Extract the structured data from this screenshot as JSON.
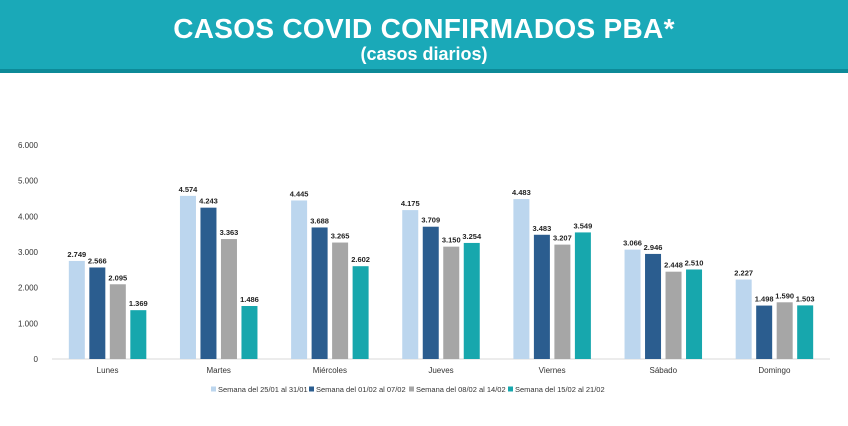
{
  "header": {
    "title": "CASOS COVID CONFIRMADOS PBA*",
    "subtitle": "(casos diarios)"
  },
  "chart_data": {
    "type": "bar",
    "title": "CASOS COVID CONFIRMADOS PBA*",
    "subtitle": "(casos diarios)",
    "xlabel": "",
    "ylabel": "",
    "ylim": [
      0,
      6000
    ],
    "yticks": [
      0,
      1000,
      2000,
      3000,
      4000,
      5000,
      6000
    ],
    "ytick_labels": [
      "0",
      "1.000",
      "2.000",
      "3.000",
      "4.000",
      "5.000",
      "6.000"
    ],
    "grid": false,
    "legend_position": "bottom",
    "categories": [
      "Lunes",
      "Martes",
      "Miércoles",
      "Jueves",
      "Viernes",
      "Sábado",
      "Domingo"
    ],
    "series": [
      {
        "name": "Semana del 25/01 al 31/01",
        "color": "#bcd6ee",
        "values": [
          2749,
          4574,
          4445,
          4175,
          4483,
          3066,
          2227
        ],
        "labels": [
          "2.749",
          "4.574",
          "4.445",
          "4.175",
          "4.483",
          "3.066",
          "2.227"
        ]
      },
      {
        "name": "Semana del 01/02 al 07/02",
        "color": "#2b5d8f",
        "values": [
          2566,
          4243,
          3688,
          3709,
          3483,
          2946,
          1498
        ],
        "labels": [
          "2.566",
          "4.243",
          "3.688",
          "3.709",
          "3.483",
          "2.946",
          "1.498"
        ]
      },
      {
        "name": "Semana del 08/02 al 14/02",
        "color": "#a6a6a6",
        "values": [
          2095,
          3363,
          3265,
          3150,
          3207,
          2448,
          1590
        ],
        "labels": [
          "2.095",
          "3.363",
          "3.265",
          "3.150",
          "3.207",
          "2.448",
          "1.590"
        ]
      },
      {
        "name": "Semana del 15/02 al 21/02",
        "color": "#17a7ad",
        "values": [
          1369,
          1486,
          2602,
          3254,
          3549,
          2510,
          1503
        ],
        "labels": [
          "1.369",
          "1.486",
          "2.602",
          "3.254",
          "3.549",
          "2.510",
          "1.503"
        ]
      }
    ]
  }
}
